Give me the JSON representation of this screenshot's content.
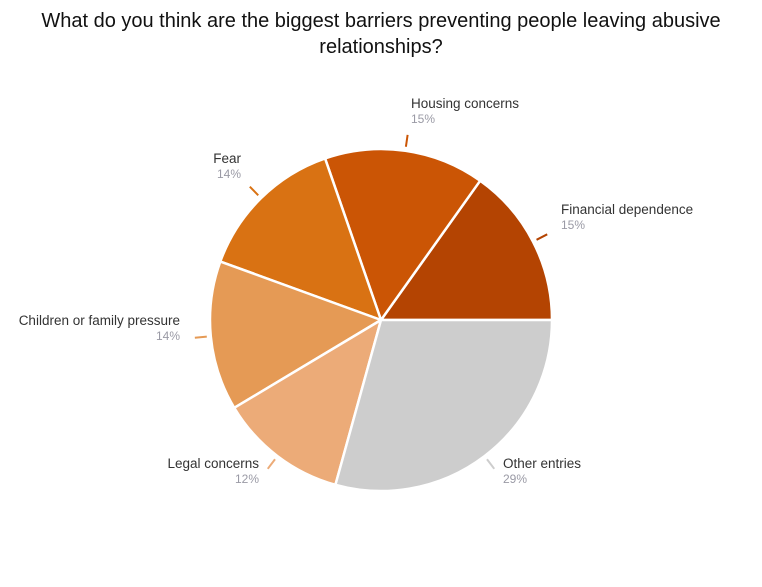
{
  "chart_data": {
    "type": "pie",
    "title": "What do you think are the biggest barriers preventing people leaving abusive relationships?",
    "slices": [
      {
        "label": "Financial dependence",
        "value": 15,
        "value_label": "15%",
        "color": "#b44402"
      },
      {
        "label": "Housing concerns",
        "value": 15,
        "value_label": "15%",
        "color": "#cb5505"
      },
      {
        "label": "Fear",
        "value": 14,
        "value_label": "14%",
        "color": "#d97213"
      },
      {
        "label": "Children or family pressure",
        "value": 14,
        "value_label": "14%",
        "color": "#e59a55"
      },
      {
        "label": "Legal concerns",
        "value": 12,
        "value_label": "12%",
        "color": "#ecab78"
      },
      {
        "label": "Other entries",
        "value": 29,
        "value_label": "29%",
        "color": "#cdcdcd"
      }
    ]
  }
}
